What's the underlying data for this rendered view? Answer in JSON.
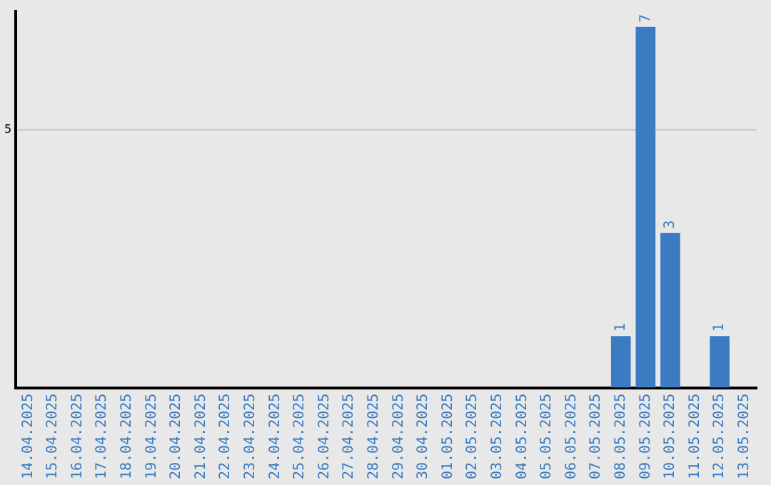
{
  "chart_data": {
    "type": "bar",
    "categories": [
      "14.04.2025",
      "15.04.2025",
      "16.04.2025",
      "17.04.2025",
      "18.04.2025",
      "19.04.2025",
      "20.04.2025",
      "21.04.2025",
      "22.04.2025",
      "23.04.2025",
      "24.04.2025",
      "25.04.2025",
      "26.04.2025",
      "27.04.2025",
      "28.04.2025",
      "29.04.2025",
      "30.04.2025",
      "01.05.2025",
      "02.05.2025",
      "03.05.2025",
      "04.05.2025",
      "05.05.2025",
      "06.05.2025",
      "07.05.2025",
      "08.05.2025",
      "09.05.2025",
      "10.05.2025",
      "11.05.2025",
      "12.05.2025",
      "13.05.2025"
    ],
    "values": [
      null,
      null,
      null,
      null,
      null,
      null,
      null,
      null,
      null,
      null,
      null,
      null,
      null,
      null,
      null,
      null,
      null,
      null,
      null,
      null,
      null,
      null,
      null,
      null,
      1,
      7,
      3,
      null,
      1,
      null
    ],
    "color": "#3a7bc2",
    "ylim": [
      0,
      7.3
    ],
    "yticks": [
      5
    ],
    "grid": "y",
    "data_labels": true,
    "legend": false
  }
}
